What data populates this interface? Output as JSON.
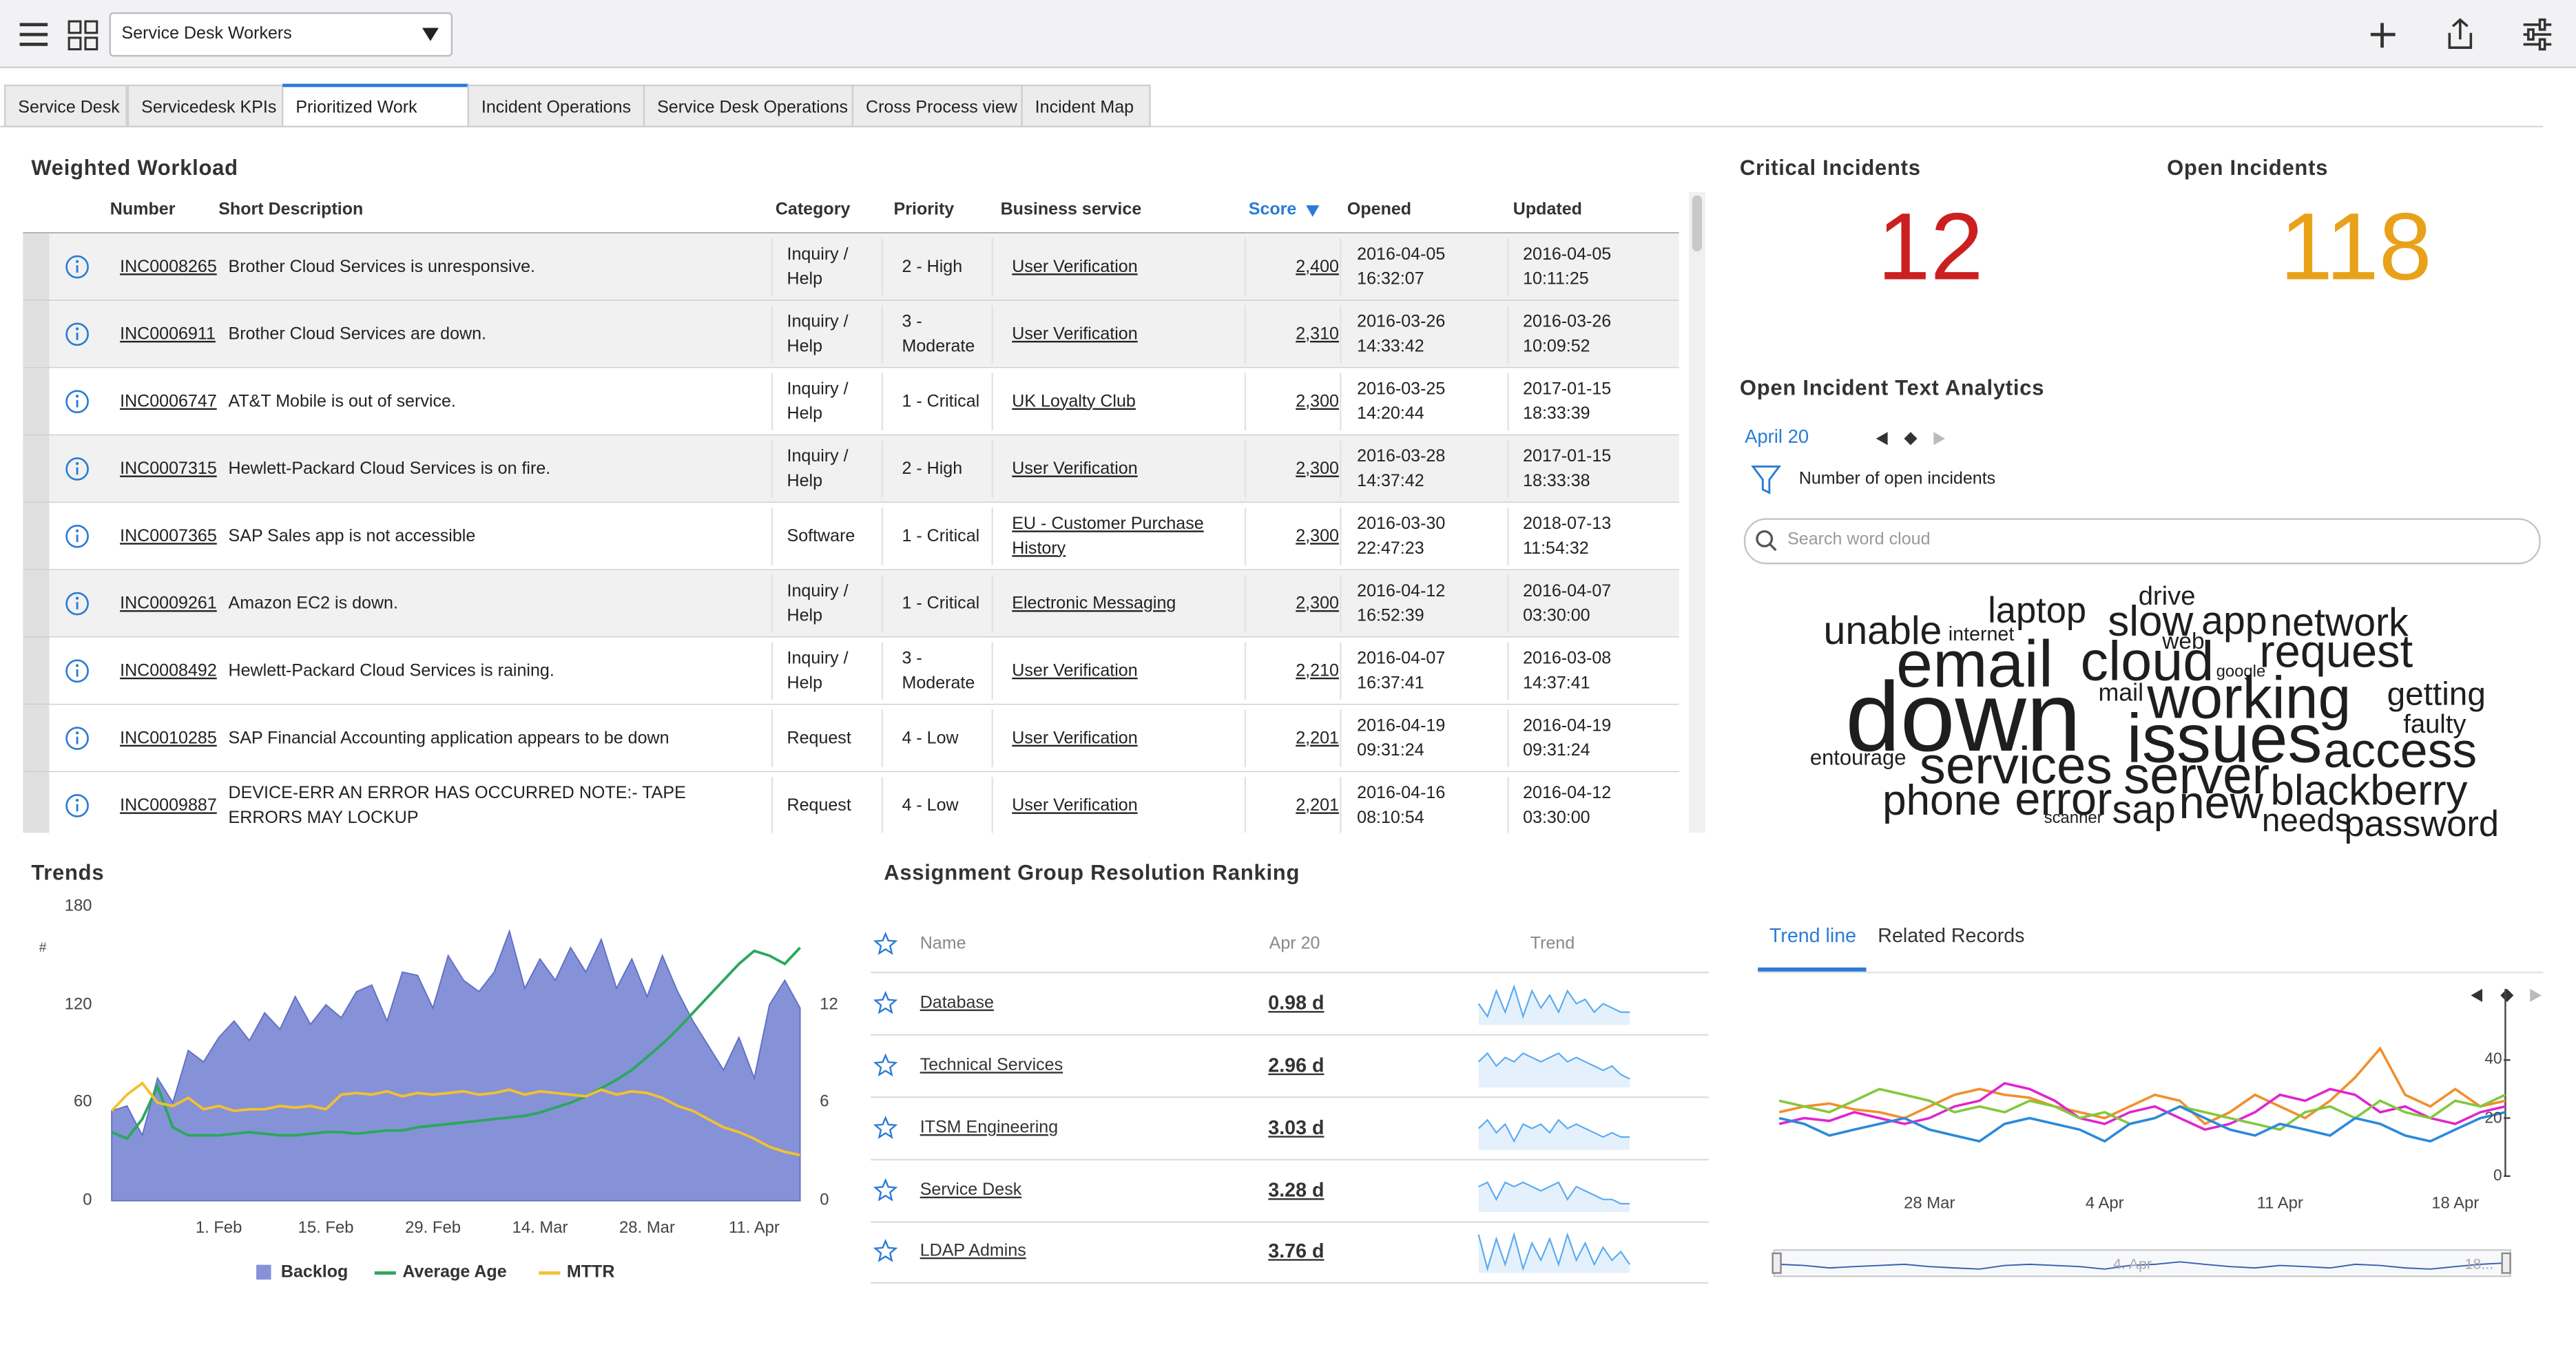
{
  "header": {
    "dashboard": "Service Desk Workers"
  },
  "tabs": {
    "labels": [
      "Service Desk",
      "Servicedesk KPIs",
      "Prioritized Work",
      "Incident Operations",
      "Service Desk Operations",
      "Cross Process view",
      "Incident Map"
    ],
    "active": 2
  },
  "workload": {
    "title": "Weighted Workload",
    "columns": [
      "Number",
      "Short Description",
      "Category",
      "Priority",
      "Business service",
      "Score",
      "Opened",
      "Updated"
    ],
    "sorted_column": 5,
    "rows": [
      [
        "INC0008265",
        "Brother Cloud Services is unresponsive.",
        "Inquiry / Help",
        "2 - High",
        "User Verification",
        "2,400",
        "2016-04-05 16:32:07",
        "2016-04-05 10:11:25"
      ],
      [
        "INC0006911",
        "Brother Cloud Services are down.",
        "Inquiry / Help",
        "3 - Moderate",
        "User Verification",
        "2,310",
        "2016-03-26 14:33:42",
        "2016-03-26 10:09:52"
      ],
      [
        "INC0006747",
        "AT&T Mobile is out of service.",
        "Inquiry / Help",
        "1 - Critical",
        "UK Loyalty Club",
        "2,300",
        "2016-03-25 14:20:44",
        "2017-01-15 18:33:39"
      ],
      [
        "INC0007315",
        "Hewlett-Packard Cloud Services is on fire.",
        "Inquiry / Help",
        "2 - High",
        "User Verification",
        "2,300",
        "2016-03-28 14:37:42",
        "2017-01-15 18:33:38"
      ],
      [
        "INC0007365",
        "SAP Sales app is not accessible",
        "Software",
        "1 - Critical",
        "EU - Customer Purchase History",
        "2,300",
        "2016-03-30 22:47:23",
        "2018-07-13 11:54:32"
      ],
      [
        "INC0009261",
        "Amazon EC2 is down.",
        "Inquiry / Help",
        "1 - Critical",
        "Electronic Messaging",
        "2,300",
        "2016-04-12 16:52:39",
        "2016-04-07 03:30:00"
      ],
      [
        "INC0008492",
        "Hewlett-Packard Cloud Services is raining.",
        "Inquiry / Help",
        "3 - Moderate",
        "User Verification",
        "2,210",
        "2016-04-07 16:37:41",
        "2016-03-08 14:37:41"
      ],
      [
        "INC0010285",
        "SAP Financial Accounting application appears to be down",
        "Request",
        "4 - Low",
        "User Verification",
        "2,201",
        "2016-04-19 09:31:24",
        "2016-04-19 09:31:24"
      ],
      [
        "INC0009887",
        "DEVICE-ERR AN ERROR HAS OCCURRED NOTE:- TAPE ERRORS MAY LOCKUP",
        "Request",
        "4 - Low",
        "User Verification",
        "2,201",
        "2016-04-16 08:10:54",
        "2016-04-12 03:30:00"
      ]
    ]
  },
  "critical": {
    "title": "Critical Incidents",
    "value": 12,
    "color": "#cc1f1f"
  },
  "open": {
    "title": "Open Incidents",
    "value": 118,
    "color": "#e8a21a"
  },
  "text_analytics": {
    "title": "Open Incident Text Analytics",
    "date": "April 20",
    "measure": "Number of open incidents",
    "search_placeholder": "Search word cloud",
    "words": [
      {
        "text": "unable",
        "weight": 24
      },
      {
        "text": "internet",
        "weight": 12
      },
      {
        "text": "laptop",
        "weight": 22
      },
      {
        "text": "drive",
        "weight": 16
      },
      {
        "text": "slow",
        "weight": 26
      },
      {
        "text": "app",
        "weight": 24
      },
      {
        "text": "network",
        "weight": 24
      },
      {
        "text": "email",
        "weight": 40
      },
      {
        "text": "cloud",
        "weight": 34
      },
      {
        "text": "web",
        "weight": 14
      },
      {
        "text": "request",
        "weight": 28
      },
      {
        "text": "google",
        "weight": 10
      },
      {
        "text": "mail",
        "weight": 15
      },
      {
        "text": "working",
        "weight": 36
      },
      {
        "text": "getting",
        "weight": 20
      },
      {
        "text": "down",
        "weight": 60
      },
      {
        "text": "issues",
        "weight": 42
      },
      {
        "text": "faulty",
        "weight": 16
      },
      {
        "text": "entourage",
        "weight": 13
      },
      {
        "text": "access",
        "weight": 30
      },
      {
        "text": "services",
        "weight": 32
      },
      {
        "text": "server",
        "weight": 32
      },
      {
        "text": "blackberry",
        "weight": 26
      },
      {
        "text": "phone",
        "weight": 26
      },
      {
        "text": "error",
        "weight": 28
      },
      {
        "text": "sap",
        "weight": 24
      },
      {
        "text": "new",
        "weight": 28
      },
      {
        "text": "needs",
        "weight": 20
      },
      {
        "text": "password",
        "weight": 22
      },
      {
        "text": "scanner",
        "weight": 10
      }
    ]
  },
  "chart_data": [
    {
      "type": "line",
      "title": "Trends",
      "ylabel": "#",
      "x": [
        "18. Jan",
        "20. Jan",
        "22. Jan",
        "24. Jan",
        "26. Jan",
        "28. Jan",
        "30. Jan",
        "1. Feb",
        "3. Feb",
        "5. Feb",
        "7. Feb",
        "9. Feb",
        "11. Feb",
        "13. Feb",
        "15. Feb",
        "17. Feb",
        "19. Feb",
        "21. Feb",
        "23. Feb",
        "25. Feb",
        "27. Feb",
        "29. Feb",
        "2. Mar",
        "4. Mar",
        "6. Mar",
        "8. Mar",
        "10. Mar",
        "12. Mar",
        "14. Mar",
        "16. Mar",
        "18. Mar",
        "20. Mar",
        "22. Mar",
        "24. Mar",
        "26. Mar",
        "28. Mar",
        "30. Mar",
        "1. Apr",
        "3. Apr",
        "5. Apr",
        "7. Apr",
        "9. Apr",
        "11. Apr",
        "13. Apr",
        "15. Apr",
        "17. Apr"
      ],
      "xticks": [
        "1. Feb",
        "15. Feb",
        "29. Feb",
        "14. Mar",
        "28. Mar",
        "11. Apr"
      ],
      "ylim": [
        0,
        180
      ],
      "yticks": [
        0,
        60,
        120,
        180
      ],
      "y2lim": [
        0,
        18
      ],
      "y2ticks": [
        0,
        6,
        12
      ],
      "series": [
        {
          "name": "Backlog",
          "type": "area",
          "color": "#8592d8",
          "values": [
            55,
            58,
            40,
            75,
            60,
            92,
            85,
            100,
            110,
            98,
            115,
            105,
            125,
            108,
            120,
            112,
            128,
            132,
            110,
            140,
            138,
            118,
            150,
            135,
            128,
            140,
            165,
            130,
            148,
            135,
            155,
            140,
            160,
            130,
            148,
            125,
            150,
            128,
            110,
            95,
            80,
            100,
            75,
            120,
            135,
            118
          ]
        },
        {
          "name": "Average Age",
          "type": "line",
          "axis": "y2",
          "color": "#2aa85c",
          "values": [
            4.2,
            3.8,
            5,
            7,
            4.5,
            4,
            4,
            4,
            4.1,
            4.2,
            4.1,
            4,
            4,
            4.1,
            4.2,
            4.2,
            4.1,
            4.2,
            4.3,
            4.3,
            4.5,
            4.6,
            4.7,
            4.8,
            4.9,
            5,
            5.1,
            5.2,
            5.4,
            5.7,
            6,
            6.4,
            6.9,
            7.4,
            8,
            8.8,
            9.6,
            10.5,
            11.5,
            12.5,
            13.5,
            14.5,
            15.3,
            15,
            14.5,
            15.5
          ]
        },
        {
          "name": "MTTR",
          "type": "line",
          "axis": "y2",
          "color": "#f2c12e",
          "values": [
            5.5,
            6.5,
            7.2,
            6,
            5.8,
            6.3,
            5.6,
            5.8,
            5.5,
            5.6,
            5.6,
            5.8,
            5.7,
            5.8,
            5.6,
            6.5,
            6.6,
            6.5,
            6.7,
            6.4,
            6.6,
            6.5,
            6.6,
            6.7,
            6.5,
            6.6,
            6.8,
            6.5,
            6.7,
            6.6,
            6.5,
            6.4,
            6.8,
            6.5,
            6.7,
            6.6,
            6.3,
            5.8,
            5.5,
            5,
            4.5,
            4.2,
            3.8,
            3.3,
            3,
            2.8
          ]
        }
      ]
    },
    {
      "type": "line",
      "tabs": [
        "Trend line",
        "Related Records"
      ],
      "active_tab": 0,
      "navigator_labels": [
        "4. Apr",
        "18..."
      ],
      "x": [
        "22 Mar",
        "23 Mar",
        "24 Mar",
        "25 Mar",
        "26 Mar",
        "27 Mar",
        "28 Mar",
        "29 Mar",
        "30 Mar",
        "31 Mar",
        "1 Apr",
        "2 Apr",
        "3 Apr",
        "4 Apr",
        "5 Apr",
        "6 Apr",
        "7 Apr",
        "8 Apr",
        "9 Apr",
        "10 Apr",
        "11 Apr",
        "12 Apr",
        "13 Apr",
        "14 Apr",
        "15 Apr",
        "16 Apr",
        "17 Apr",
        "18 Apr",
        "19 Apr",
        "20 Apr"
      ],
      "xticks": [
        "28 Mar",
        "4 Apr",
        "11 Apr",
        "18 Apr"
      ],
      "ylim": [
        0,
        60
      ],
      "yticks": [
        0,
        20,
        40
      ],
      "series": [
        {
          "color": "#f28e2b",
          "values": [
            22,
            24,
            25,
            23,
            22,
            20,
            24,
            28,
            30,
            28,
            27,
            24,
            22,
            20,
            24,
            28,
            26,
            18,
            22,
            28,
            24,
            20,
            26,
            34,
            44,
            28,
            24,
            30,
            24,
            26
          ]
        },
        {
          "color": "#e024d0",
          "values": [
            18,
            20,
            19,
            22,
            20,
            18,
            20,
            24,
            26,
            32,
            30,
            26,
            20,
            18,
            22,
            24,
            20,
            16,
            18,
            22,
            28,
            26,
            30,
            28,
            22,
            24,
            20,
            18,
            22,
            24
          ]
        },
        {
          "color": "#82c83c",
          "values": [
            26,
            24,
            22,
            26,
            30,
            28,
            26,
            22,
            24,
            22,
            26,
            24,
            20,
            22,
            18,
            20,
            24,
            22,
            20,
            18,
            16,
            22,
            24,
            20,
            26,
            22,
            20,
            26,
            24,
            28
          ]
        },
        {
          "color": "#2b8ad8",
          "values": [
            20,
            18,
            14,
            16,
            18,
            20,
            16,
            14,
            12,
            18,
            20,
            18,
            16,
            12,
            18,
            20,
            24,
            20,
            16,
            14,
            18,
            16,
            14,
            20,
            18,
            14,
            12,
            16,
            20,
            22
          ]
        }
      ]
    }
  ],
  "ranking": {
    "title": "Assignment Group Resolution Ranking",
    "columns": [
      "Name",
      "Apr 20",
      "Trend"
    ],
    "rows": [
      {
        "name": "Database",
        "value": "0.98 d",
        "trend": [
          5,
          2,
          8,
          3,
          9,
          2,
          8,
          4,
          7,
          3,
          8,
          5,
          6,
          3,
          5,
          4,
          3,
          3
        ]
      },
      {
        "name": "Technical Services",
        "value": "2.96 d",
        "trend": [
          6,
          8,
          5,
          7,
          6,
          8,
          7,
          6,
          7,
          8,
          6,
          7,
          6,
          5,
          4,
          5,
          3,
          2
        ]
      },
      {
        "name": "ITSM Engineering",
        "value": "3.03 d",
        "trend": [
          5,
          7,
          4,
          6,
          2,
          6,
          5,
          6,
          4,
          7,
          5,
          6,
          5,
          4,
          3,
          4,
          3,
          3
        ]
      },
      {
        "name": "Service Desk",
        "value": "3.28 d",
        "trend": [
          6,
          7,
          3,
          7,
          6,
          7,
          6,
          5,
          6,
          7,
          3,
          6,
          5,
          4,
          3,
          3,
          2,
          2
        ]
      },
      {
        "name": "LDAP Admins",
        "value": "3.76 d",
        "trend": [
          9,
          1,
          8,
          2,
          9,
          1,
          7,
          3,
          8,
          2,
          9,
          3,
          7,
          2,
          6,
          3,
          5,
          2
        ]
      }
    ]
  }
}
